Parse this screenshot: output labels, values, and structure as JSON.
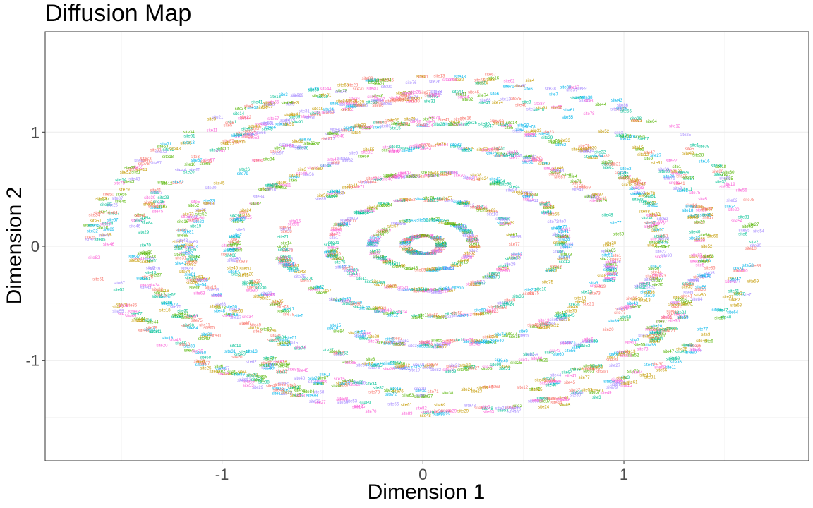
{
  "chart_data": {
    "type": "scatter",
    "title": "Diffusion Map",
    "xlabel": "Dimension 1",
    "ylabel": "Dimension 2",
    "xlim": [
      -1.88,
      1.92
    ],
    "ylim": [
      -1.88,
      1.88
    ],
    "x_ticks": [
      -1,
      0,
      1
    ],
    "x_tick_labels": [
      "-1",
      "0",
      "1"
    ],
    "y_ticks": [
      -1,
      0,
      1
    ],
    "y_tick_labels": [
      "-1",
      "0",
      "1"
    ],
    "grid": true,
    "legend": "none",
    "point_labels": [
      "site1",
      "site2",
      "site3",
      "site4",
      "site5",
      "site6",
      "site7",
      "site8",
      "site9",
      "site10",
      "site11",
      "site12",
      "site13",
      "site14",
      "site15",
      "site16",
      "site17",
      "site18",
      "site19",
      "site20",
      "site21",
      "site22",
      "site23",
      "site24",
      "site25",
      "site26",
      "site27",
      "site28",
      "site29",
      "site30",
      "site31",
      "site32",
      "site33",
      "site34",
      "site35",
      "site36",
      "site37",
      "site38",
      "site39",
      "site40",
      "site41",
      "site42",
      "site43",
      "site44",
      "site45",
      "site46",
      "site47",
      "site48",
      "site49",
      "site50",
      "site51",
      "site52",
      "site53",
      "site54",
      "site55",
      "site56",
      "site57",
      "site58",
      "site59",
      "site60",
      "site61",
      "site62",
      "site63",
      "site64",
      "site65",
      "site66",
      "site67",
      "site68",
      "site69",
      "site70",
      "site71",
      "site72",
      "site73",
      "site74",
      "site75",
      "site76",
      "site77",
      "site78",
      "site79",
      "site80",
      "site81",
      "site82",
      "site83",
      "site84",
      "site85",
      "site86",
      "site87",
      "site88",
      "site89",
      "site90"
    ],
    "series_colors": [
      "#F8766D",
      "#C49A00",
      "#53B400",
      "#00C094",
      "#00B6EB",
      "#A58AFF",
      "#FB61D7"
    ],
    "clusters": [
      {
        "shape": "ring",
        "rx": 0.09,
        "ry": 0.08,
        "cx": 0.0,
        "cy": 0.0,
        "count": 60
      },
      {
        "shape": "ring",
        "rx": 0.25,
        "ry": 0.22,
        "cx": 0.0,
        "cy": 0.0,
        "count": 90
      },
      {
        "shape": "ring",
        "rx": 0.46,
        "ry": 0.4,
        "cx": 0.0,
        "cy": 0.0,
        "count": 140
      },
      {
        "shape": "ring",
        "rx": 0.7,
        "ry": 0.62,
        "cx": 0.0,
        "cy": 0.0,
        "count": 200
      },
      {
        "shape": "ring",
        "rx": 0.95,
        "ry": 0.86,
        "cx": 0.0,
        "cy": 0.0,
        "count": 280
      },
      {
        "shape": "ring",
        "rx": 1.18,
        "ry": 1.08,
        "cx": 0.0,
        "cy": 0.0,
        "count": 360
      },
      {
        "shape": "ring",
        "rx": 1.4,
        "ry": 1.3,
        "cx": 0.0,
        "cy": 0.0,
        "count": 440
      },
      {
        "shape": "ring",
        "rx": 1.62,
        "ry": 1.45,
        "cx": 0.0,
        "cy": 0.0,
        "count": 380
      }
    ]
  }
}
